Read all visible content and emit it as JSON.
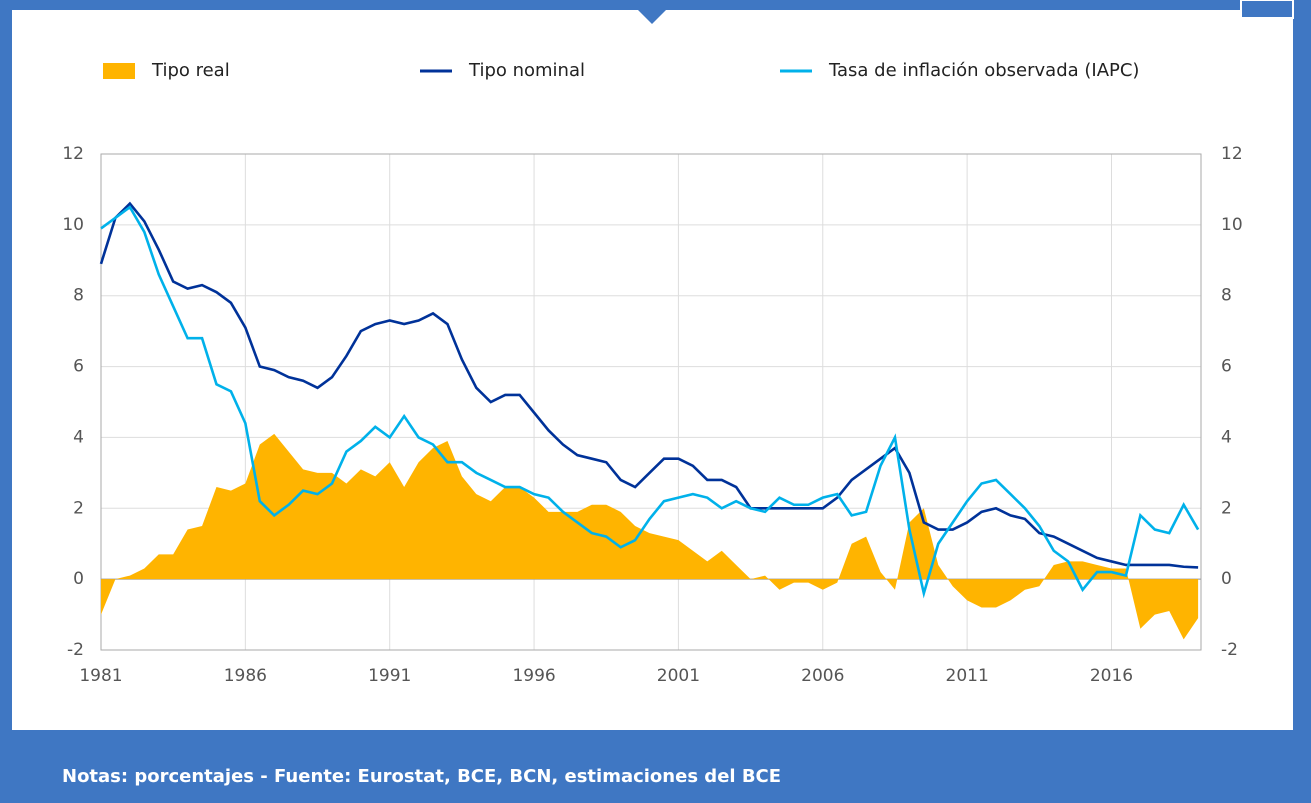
{
  "chart_data": {
    "type": "area-line",
    "footnote": "Notas: porcentajes - Fuente: Eurostat, BCE, BCN, estimaciones del BCE",
    "x": [
      1981,
      1981.5,
      1982,
      1982.5,
      1983,
      1983.5,
      1984,
      1984.5,
      1985,
      1985.5,
      1986,
      1986.5,
      1987,
      1987.5,
      1988,
      1988.5,
      1989,
      1989.5,
      1990,
      1990.5,
      1991,
      1991.5,
      1992,
      1992.5,
      1993,
      1993.5,
      1994,
      1994.5,
      1995,
      1995.5,
      1996,
      1996.5,
      1997,
      1997.5,
      1998,
      1998.5,
      1999,
      1999.5,
      2000,
      2000.5,
      2001,
      2001.5,
      2002,
      2002.5,
      2003,
      2003.5,
      2004,
      2004.5,
      2005,
      2005.5,
      2006,
      2006.5,
      2007,
      2007.5,
      2008,
      2008.5,
      2009,
      2009.5,
      2010,
      2010.5,
      2011,
      2011.5,
      2012,
      2012.5,
      2013,
      2013.5,
      2014,
      2014.5,
      2015,
      2015.5,
      2016,
      2016.5,
      2017,
      2017.5,
      2018,
      2018.5,
      2019
    ],
    "series": [
      {
        "name": "Tipo real",
        "kind": "area",
        "color": "#ffb400",
        "values": [
          -1.0,
          0,
          0.1,
          0.3,
          0.7,
          0.7,
          1.4,
          1.5,
          2.6,
          2.5,
          2.7,
          3.8,
          4.1,
          3.6,
          3.1,
          3.0,
          3.0,
          2.7,
          3.1,
          2.9,
          3.3,
          2.6,
          3.3,
          3.7,
          3.9,
          2.9,
          2.4,
          2.2,
          2.6,
          2.6,
          2.3,
          1.9,
          1.9,
          1.9,
          2.1,
          2.1,
          1.9,
          1.5,
          1.3,
          1.2,
          1.1,
          0.8,
          0.5,
          0.8,
          0.4,
          0,
          0.1,
          -0.3,
          -0.1,
          -0.1,
          -0.3,
          -0.1,
          1.0,
          1.2,
          0.2,
          -0.3,
          1.6,
          2.0,
          0.4,
          -0.2,
          -0.6,
          -0.8,
          -0.8,
          -0.6,
          -0.3,
          -0.2,
          0.4,
          0.5,
          0.5,
          0.4,
          0.3,
          0.3,
          -1.4,
          -1.0,
          -0.9,
          -1.7,
          -1.1
        ]
      },
      {
        "name": "Tipo nominal",
        "kind": "line",
        "color": "#003299",
        "values": [
          8.9,
          10.2,
          10.6,
          10.1,
          9.3,
          8.4,
          8.2,
          8.3,
          8.1,
          7.8,
          7.1,
          6.0,
          5.9,
          5.7,
          5.6,
          5.4,
          5.7,
          6.3,
          7.0,
          7.2,
          7.3,
          7.2,
          7.3,
          7.5,
          7.2,
          6.2,
          5.4,
          5.0,
          5.2,
          5.2,
          4.7,
          4.2,
          3.8,
          3.5,
          3.4,
          3.3,
          2.8,
          2.6,
          3.0,
          3.4,
          3.4,
          3.2,
          2.8,
          2.8,
          2.6,
          2.0,
          2.0,
          2.0,
          2.0,
          2.0,
          2.0,
          2.3,
          2.8,
          3.1,
          3.4,
          3.7,
          3.0,
          1.6,
          1.4,
          1.4,
          1.6,
          1.9,
          2.0,
          1.8,
          1.7,
          1.3,
          1.2,
          1.0,
          0.8,
          0.6,
          0.5,
          0.4,
          0.4,
          0.4,
          0.4,
          0.35,
          0.33
        ]
      },
      {
        "name": "Tasa de inflación observada (IAPC)",
        "kind": "line",
        "color": "#00b1ea",
        "values": [
          9.9,
          10.2,
          10.5,
          9.8,
          8.6,
          7.7,
          6.8,
          6.8,
          5.5,
          5.3,
          4.4,
          2.2,
          1.8,
          2.1,
          2.5,
          2.4,
          2.7,
          3.6,
          3.9,
          4.3,
          4.0,
          4.6,
          4.0,
          3.8,
          3.3,
          3.3,
          3.0,
          2.8,
          2.6,
          2.6,
          2.4,
          2.3,
          1.9,
          1.6,
          1.3,
          1.2,
          0.9,
          1.1,
          1.7,
          2.2,
          2.3,
          2.4,
          2.3,
          2.0,
          2.2,
          2.0,
          1.9,
          2.3,
          2.1,
          2.1,
          2.3,
          2.4,
          1.8,
          1.9,
          3.2,
          4.0,
          1.4,
          -0.4,
          1.0,
          1.6,
          2.2,
          2.7,
          2.8,
          2.4,
          2.0,
          1.5,
          0.8,
          0.5,
          -0.3,
          0.2,
          0.2,
          0.1,
          1.8,
          1.4,
          1.3,
          2.1,
          1.4
        ]
      }
    ],
    "xlim": [
      1981,
      2019.1
    ],
    "xticks": [
      1981,
      1986,
      1991,
      1996,
      2001,
      2006,
      2011,
      2016
    ],
    "ylim": [
      -2,
      12
    ],
    "yticks": [
      -2,
      0,
      2,
      4,
      6,
      8,
      10,
      12
    ],
    "y2lim": [
      -2,
      12
    ],
    "y2ticks": [
      -2,
      0,
      2,
      4,
      6,
      8,
      10,
      12
    ],
    "grid": true
  }
}
